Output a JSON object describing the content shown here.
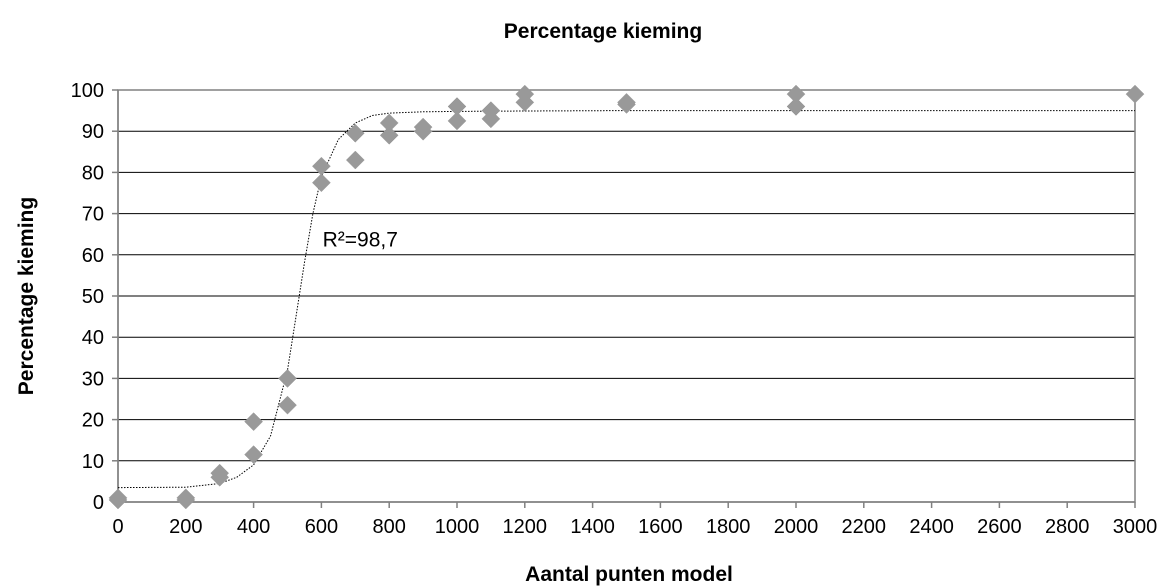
{
  "chart_data": {
    "type": "scatter",
    "title": "Percentage kieming",
    "xlabel": "Aantal punten model",
    "ylabel": "Percentage kieming",
    "xlim": [
      0,
      3000
    ],
    "ylim": [
      0,
      100
    ],
    "x_ticks": [
      0,
      200,
      400,
      600,
      800,
      1000,
      1200,
      1400,
      1600,
      1800,
      2000,
      2200,
      2400,
      2600,
      2800,
      3000
    ],
    "y_ticks": [
      0,
      10,
      20,
      30,
      40,
      50,
      60,
      70,
      80,
      90,
      100
    ],
    "x_tick_labels": [
      "0",
      "200",
      "400",
      "600",
      "800",
      "1000",
      "1200",
      "1400",
      "1600",
      "1800",
      "2000",
      "2200",
      "2400",
      "2600",
      "2800",
      "3000"
    ],
    "y_tick_labels": [
      "0",
      "10",
      "20",
      "30",
      "40",
      "50",
      "60",
      "70",
      "80",
      "90",
      "100"
    ],
    "grid": "horizontal",
    "marker": "diamond",
    "marker_color": "#999999",
    "series": [
      {
        "values": [
          {
            "x": 0,
            "y": 0.5
          },
          {
            "x": 0,
            "y": 1
          },
          {
            "x": 200,
            "y": 0.5
          },
          {
            "x": 200,
            "y": 1
          },
          {
            "x": 300,
            "y": 6
          },
          {
            "x": 300,
            "y": 7
          },
          {
            "x": 400,
            "y": 11.5
          },
          {
            "x": 400,
            "y": 19.5
          },
          {
            "x": 500,
            "y": 23.5
          },
          {
            "x": 500,
            "y": 30
          },
          {
            "x": 600,
            "y": 77.5
          },
          {
            "x": 600,
            "y": 81.5
          },
          {
            "x": 700,
            "y": 83
          },
          {
            "x": 700,
            "y": 89.5
          },
          {
            "x": 800,
            "y": 89
          },
          {
            "x": 800,
            "y": 92
          },
          {
            "x": 900,
            "y": 90
          },
          {
            "x": 900,
            "y": 91
          },
          {
            "x": 1000,
            "y": 92.5
          },
          {
            "x": 1000,
            "y": 96
          },
          {
            "x": 1100,
            "y": 93
          },
          {
            "x": 1100,
            "y": 95
          },
          {
            "x": 1200,
            "y": 97
          },
          {
            "x": 1200,
            "y": 99
          },
          {
            "x": 1500,
            "y": 96.5
          },
          {
            "x": 1500,
            "y": 97
          },
          {
            "x": 2000,
            "y": 96
          },
          {
            "x": 2000,
            "y": 99
          },
          {
            "x": 3000,
            "y": 99
          }
        ]
      }
    ],
    "trendline": {
      "style": "dotted",
      "color": "#000000",
      "x": [
        0,
        200,
        300,
        350,
        400,
        450,
        500,
        525,
        550,
        575,
        600,
        650,
        700,
        750,
        800,
        900,
        1000,
        1200,
        1500,
        2000,
        3000
      ],
      "y": [
        3.5,
        3.6,
        4.5,
        6,
        9,
        16,
        32,
        45,
        58,
        70,
        79,
        88,
        92,
        93.8,
        94.4,
        94.7,
        94.8,
        94.9,
        95,
        95,
        95
      ]
    },
    "annotation": {
      "text": "R²=98,7",
      "x": 580,
      "y": 62
    }
  },
  "colors": {
    "background": "#ffffff",
    "gridline": "#000000",
    "axis": "#808080",
    "marker": "#999999",
    "trendline": "#000000"
  }
}
